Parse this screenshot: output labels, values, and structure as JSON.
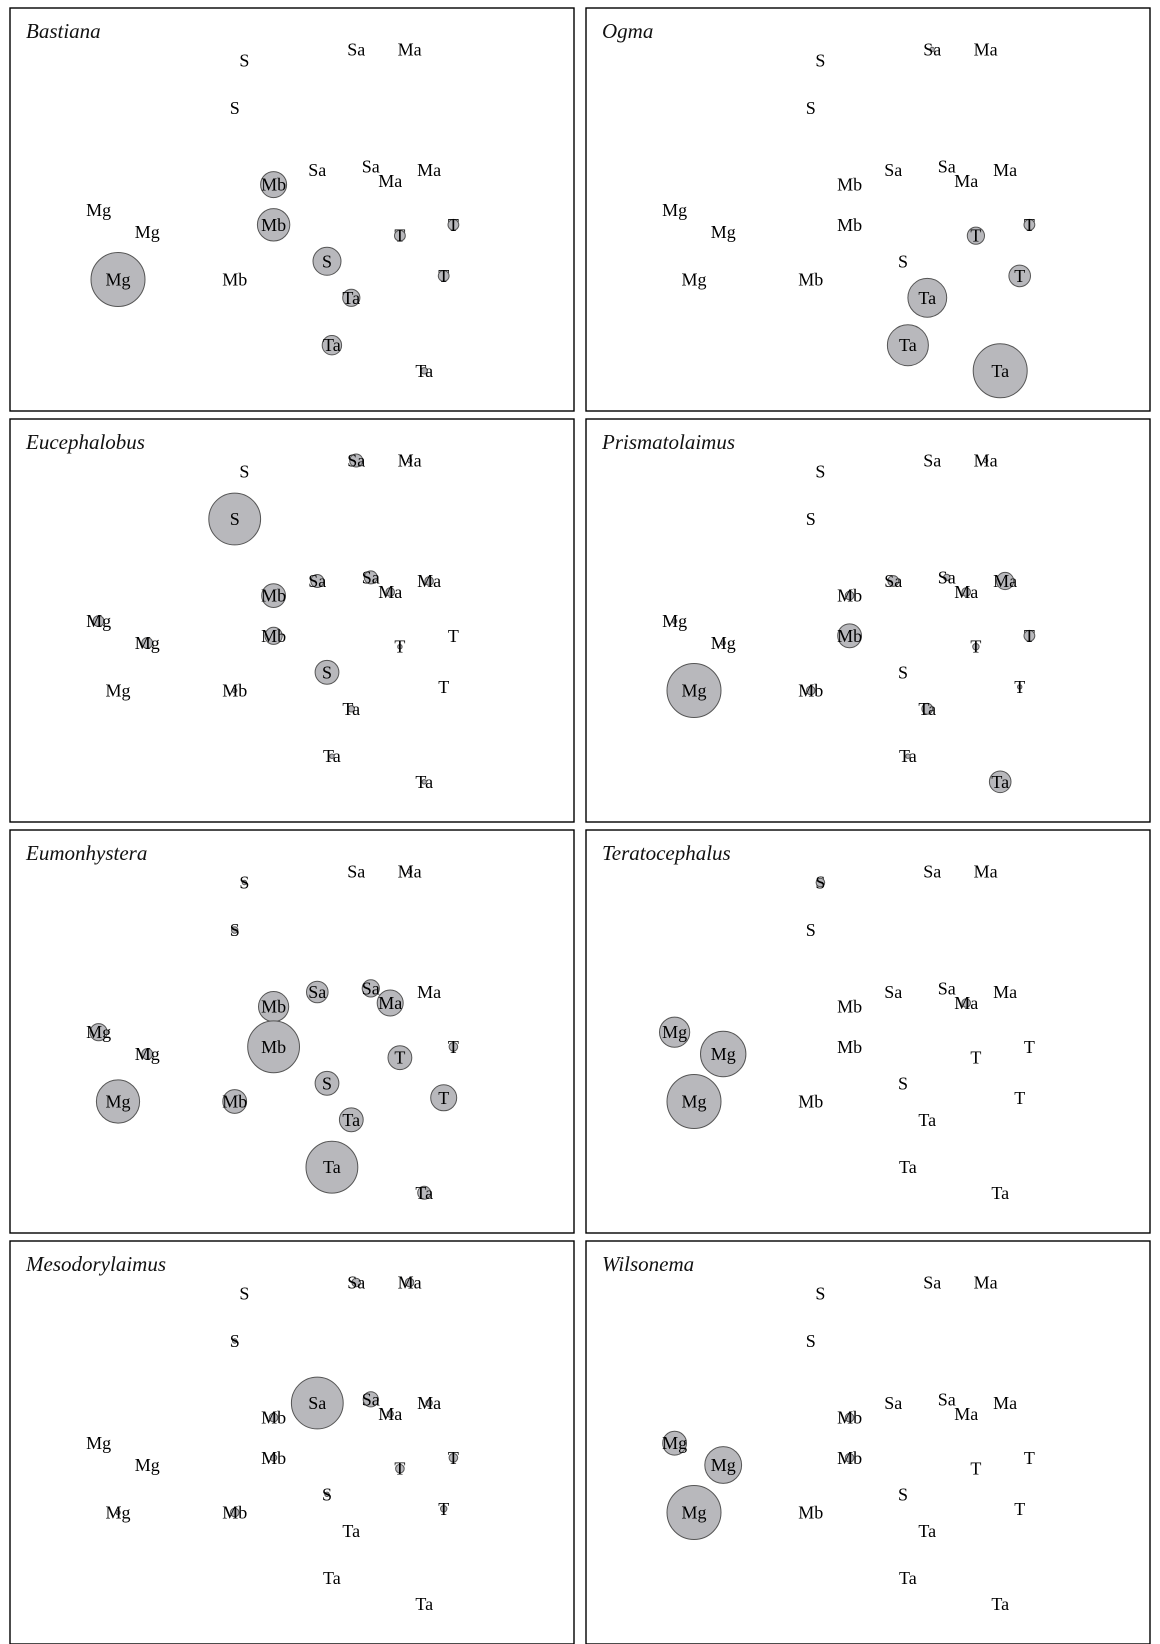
{
  "figure": {
    "type": "bubble-ordination-grid",
    "bubble_fill": "#b8b8bc",
    "bubble_stroke": "#555555"
  },
  "chart_data": {
    "type": "scatter",
    "x_axis": {
      "ticks": "none",
      "label": ""
    },
    "y_axis": {
      "ticks": "none",
      "label": ""
    },
    "grid": false,
    "note": "Same sample ordination repeated in every panel; bubble size = relative abundance of the genus named in the panel title.",
    "points": [
      {
        "label": "S",
        "x": 0.4,
        "y": 0.9
      },
      {
        "label": "Sa",
        "x": 0.63,
        "y": 0.93
      },
      {
        "label": "Ma",
        "x": 0.74,
        "y": 0.93
      },
      {
        "label": "S",
        "x": 0.38,
        "y": 0.77
      },
      {
        "label": "Mb",
        "x": 0.46,
        "y": 0.56
      },
      {
        "label": "Sa",
        "x": 0.55,
        "y": 0.6
      },
      {
        "label": "Sa",
        "x": 0.66,
        "y": 0.61
      },
      {
        "label": "Ma",
        "x": 0.7,
        "y": 0.57
      },
      {
        "label": "Ma",
        "x": 0.78,
        "y": 0.6
      },
      {
        "label": "Mg",
        "x": 0.1,
        "y": 0.49
      },
      {
        "label": "Mg",
        "x": 0.2,
        "y": 0.43
      },
      {
        "label": "Mb",
        "x": 0.46,
        "y": 0.45
      },
      {
        "label": "T",
        "x": 0.72,
        "y": 0.42
      },
      {
        "label": "T",
        "x": 0.83,
        "y": 0.45
      },
      {
        "label": "Mg",
        "x": 0.14,
        "y": 0.3
      },
      {
        "label": "Mb",
        "x": 0.38,
        "y": 0.3
      },
      {
        "label": "S",
        "x": 0.57,
        "y": 0.35
      },
      {
        "label": "Ta",
        "x": 0.62,
        "y": 0.25
      },
      {
        "label": "T",
        "x": 0.81,
        "y": 0.31
      },
      {
        "label": "Ta",
        "x": 0.58,
        "y": 0.12
      },
      {
        "label": "Ta",
        "x": 0.77,
        "y": 0.05
      }
    ],
    "panels": [
      {
        "title": "Bastiana",
        "sizes": [
          0,
          0,
          0,
          0,
          12,
          0,
          0,
          0,
          0,
          0,
          0,
          15,
          5,
          5,
          25,
          0,
          13,
          8,
          5,
          9,
          3
        ]
      },
      {
        "title": "Ogma",
        "sizes": [
          0,
          2,
          0,
          0,
          0,
          0,
          0,
          0,
          0,
          0,
          0,
          0,
          8,
          5,
          0,
          0,
          0,
          18,
          10,
          19,
          25
        ]
      },
      {
        "title": "Eucephalobus",
        "sizes": [
          0,
          6,
          2,
          24,
          11,
          6,
          6,
          4,
          4,
          5,
          5,
          8,
          2,
          0,
          0,
          2,
          11,
          3,
          0,
          2,
          2
        ]
      },
      {
        "title": "Prismatolaimus",
        "sizes": [
          0,
          0,
          2,
          0,
          4,
          5,
          3,
          4,
          8,
          2,
          2,
          11,
          3,
          5,
          25,
          4,
          0,
          5,
          2,
          2,
          10
        ]
      },
      {
        "title": "Eumonhystera",
        "sizes": [
          2,
          0,
          2,
          3,
          14,
          10,
          8,
          12,
          0,
          8,
          5,
          24,
          11,
          4,
          20,
          11,
          11,
          11,
          12,
          24,
          6
        ]
      },
      {
        "title": "Teratocephalus",
        "sizes": [
          4,
          0,
          0,
          0,
          0,
          0,
          0,
          4,
          0,
          14,
          21,
          0,
          0,
          0,
          25,
          0,
          0,
          0,
          0,
          0,
          0
        ]
      },
      {
        "title": "Mesodorylaimus",
        "sizes": [
          0,
          4,
          4,
          2,
          4,
          24,
          7,
          3,
          3,
          0,
          0,
          3,
          4,
          4,
          2,
          4,
          2,
          0,
          3,
          0,
          0
        ]
      },
      {
        "title": "Wilsonema",
        "sizes": [
          0,
          0,
          0,
          0,
          4,
          0,
          0,
          0,
          0,
          11,
          17,
          4,
          0,
          0,
          25,
          0,
          0,
          0,
          0,
          0,
          0
        ]
      }
    ]
  }
}
